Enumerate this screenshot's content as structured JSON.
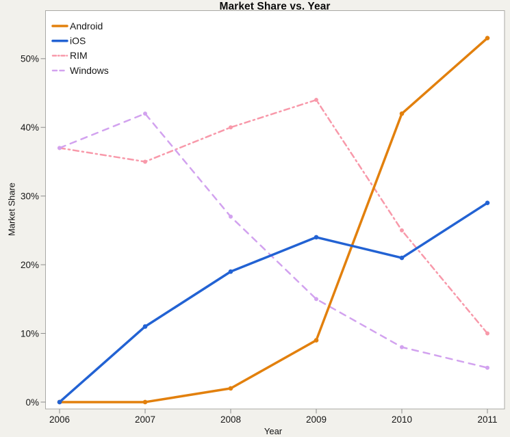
{
  "chart_data": {
    "type": "line",
    "title": "Market Share vs. Year",
    "xlabel": "Year",
    "ylabel": "Market Share",
    "x": [
      2006,
      2007,
      2008,
      2009,
      2010,
      2011
    ],
    "series": [
      {
        "name": "Android",
        "values": [
          0,
          0,
          2,
          9,
          42,
          53
        ],
        "color": "#E2800D",
        "style": "solid",
        "width": 3.5
      },
      {
        "name": "iOS",
        "values": [
          0,
          11,
          19,
          24,
          21,
          29
        ],
        "color": "#2262D3",
        "style": "solid",
        "width": 3.5
      },
      {
        "name": "RIM",
        "values": [
          37,
          35,
          40,
          44,
          25,
          10
        ],
        "color": "#F899AA",
        "style": "dashdot",
        "width": 2.5
      },
      {
        "name": "Windows",
        "values": [
          37,
          42,
          27,
          15,
          8,
          5
        ],
        "color": "#D2A2EF",
        "style": "dashed",
        "width": 2.5
      }
    ],
    "y_ticks": [
      {
        "value": 0,
        "label": "0%"
      },
      {
        "value": 10,
        "label": "10%"
      },
      {
        "value": 20,
        "label": "20%"
      },
      {
        "value": 30,
        "label": "30%"
      },
      {
        "value": 40,
        "label": "40%"
      },
      {
        "value": 50,
        "label": "50%"
      }
    ],
    "ylim": [
      -1,
      57
    ],
    "grid": false,
    "legend_position": "top-left",
    "colors": {
      "background": "#F2F1EC",
      "plot_background": "#FFFFFF",
      "frame": "#A9A9A5",
      "tick": "#8A8A8A",
      "text": "#161616"
    }
  }
}
